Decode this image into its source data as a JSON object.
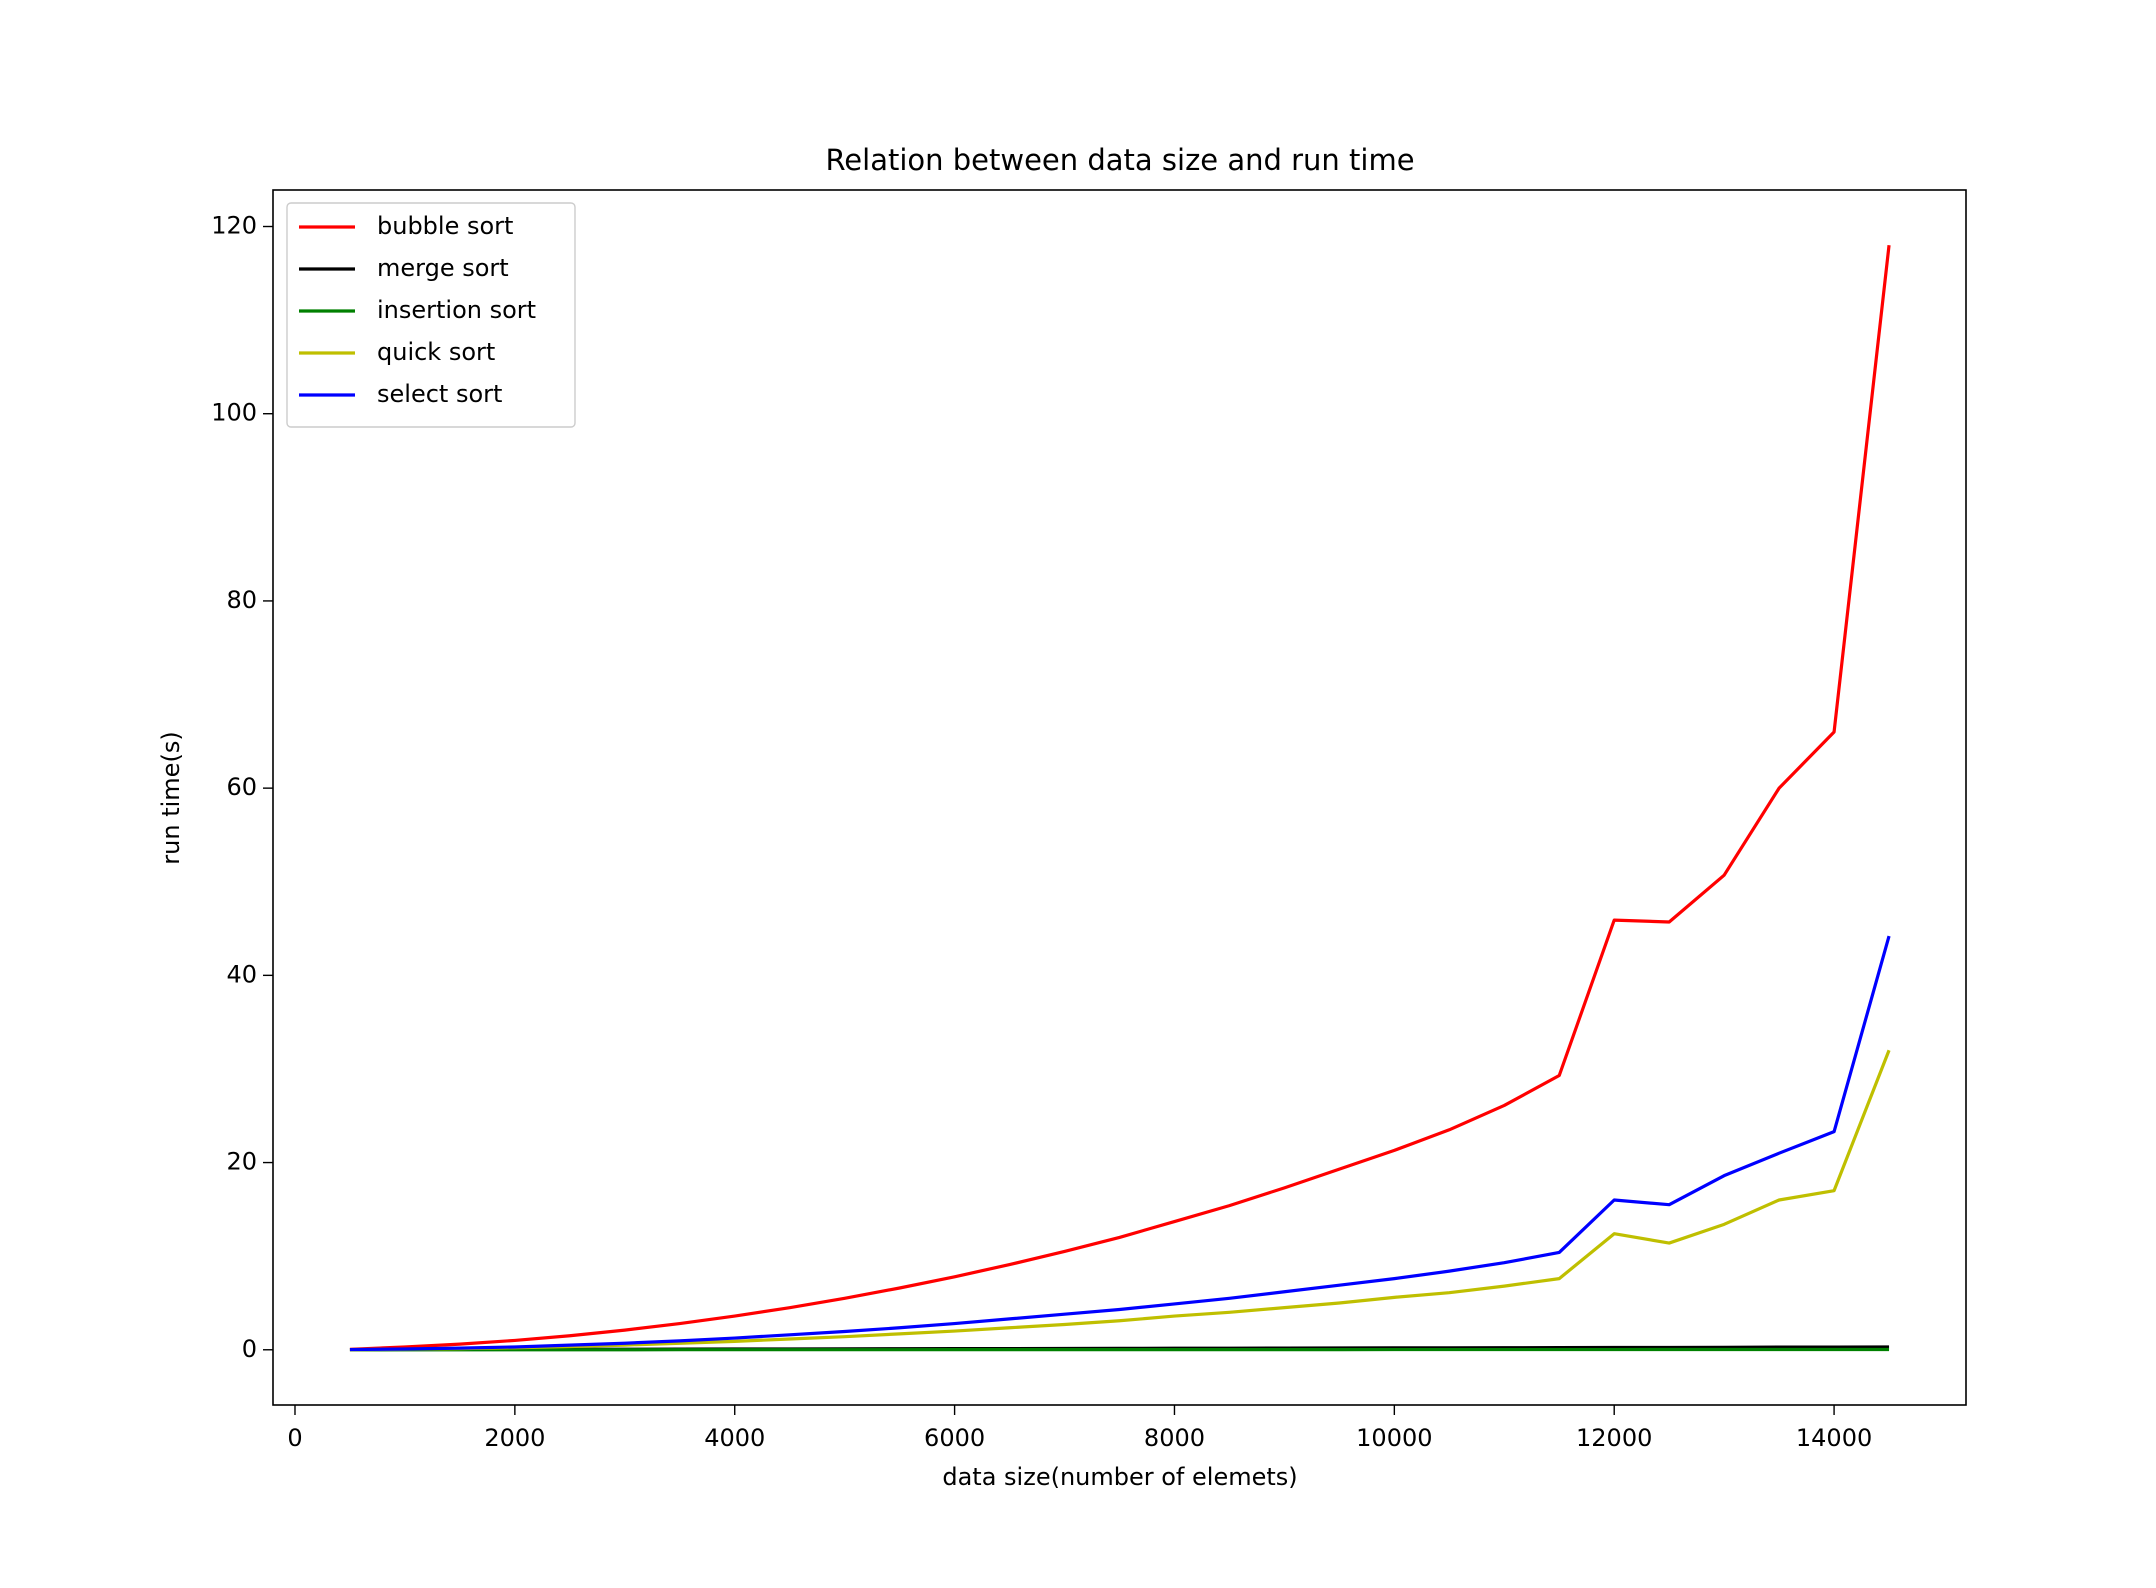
{
  "chart_data": {
    "type": "line",
    "title": "Relation between data size and run time",
    "x_label": "data size(number of elemets)",
    "y_label": "run time(s)",
    "x": [
      500,
      1000,
      1500,
      2000,
      2500,
      3000,
      3500,
      4000,
      4500,
      5000,
      5500,
      6000,
      6500,
      7000,
      7500,
      8000,
      8500,
      9000,
      9500,
      10000,
      10500,
      11000,
      11500,
      12000,
      12500,
      13000,
      13500,
      14000,
      14500
    ],
    "series": [
      {
        "name": "bubble sort",
        "color": "#ff0000",
        "values": [
          0.05,
          0.3,
          0.6,
          1.0,
          1.5,
          2.1,
          2.8,
          3.6,
          4.5,
          5.5,
          6.6,
          7.8,
          9.1,
          10.5,
          12.0,
          13.7,
          15.4,
          17.3,
          19.3,
          21.3,
          23.5,
          26.1,
          29.3,
          45.9,
          45.7,
          50.7,
          60.0,
          66.0,
          118.0
        ]
      },
      {
        "name": "merge sort",
        "color": "#000000",
        "values": [
          0.01,
          0.02,
          0.03,
          0.04,
          0.05,
          0.06,
          0.07,
          0.08,
          0.09,
          0.1,
          0.11,
          0.12,
          0.13,
          0.14,
          0.15,
          0.16,
          0.17,
          0.18,
          0.19,
          0.2,
          0.21,
          0.22,
          0.23,
          0.25,
          0.25,
          0.26,
          0.28,
          0.29,
          0.3
        ]
      },
      {
        "name": "insertion sort",
        "color": "#008000",
        "values": [
          0.001,
          0.002,
          0.003,
          0.004,
          0.005,
          0.006,
          0.007,
          0.008,
          0.009,
          0.01,
          0.011,
          0.012,
          0.013,
          0.014,
          0.015,
          0.016,
          0.017,
          0.018,
          0.019,
          0.02,
          0.021,
          0.022,
          0.023,
          0.025,
          0.026,
          0.027,
          0.028,
          0.029,
          0.03
        ]
      },
      {
        "name": "quick sort",
        "color": "#bfbf00",
        "values": [
          0.015,
          0.06,
          0.12,
          0.22,
          0.35,
          0.5,
          0.7,
          0.9,
          1.15,
          1.4,
          1.7,
          2.0,
          2.35,
          2.7,
          3.1,
          3.6,
          4.0,
          4.5,
          5.0,
          5.6,
          6.1,
          6.8,
          7.6,
          12.4,
          11.4,
          13.4,
          16.0,
          17.0,
          32.0
        ]
      },
      {
        "name": "select sort",
        "color": "#0000ff",
        "values": [
          0.02,
          0.08,
          0.18,
          0.3,
          0.5,
          0.7,
          0.95,
          1.25,
          1.6,
          1.95,
          2.35,
          2.8,
          3.3,
          3.8,
          4.3,
          4.9,
          5.5,
          6.2,
          6.9,
          7.6,
          8.4,
          9.3,
          10.4,
          16.0,
          15.5,
          18.6,
          21.0,
          23.3,
          44.2
        ]
      }
    ],
    "xlim": [
      -200,
      15200
    ],
    "xticks": [
      0,
      2000,
      4000,
      6000,
      8000,
      10000,
      12000,
      14000
    ],
    "ylim": [
      -5.9,
      123.9
    ],
    "yticks": [
      0,
      20,
      40,
      60,
      80,
      100,
      120
    ],
    "legend": "upper left"
  }
}
